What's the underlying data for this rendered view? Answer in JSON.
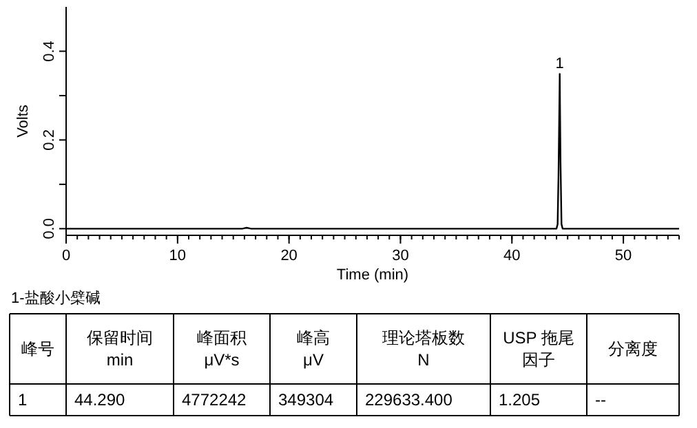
{
  "chart_data": {
    "type": "line",
    "xlabel": "Time (min)",
    "ylabel": "Volts",
    "xlim": [
      0,
      55
    ],
    "ylim": [
      -0.015,
      0.5
    ],
    "xticks": [
      0,
      10,
      20,
      30,
      40,
      50
    ],
    "yticks": [
      {
        "value": 0.0,
        "label": "0.0"
      },
      {
        "value": 0.1,
        "label": null
      },
      {
        "value": 0.2,
        "label": "0.2"
      },
      {
        "value": 0.3,
        "label": null
      },
      {
        "value": 0.4,
        "label": "0.4"
      }
    ],
    "grid": false,
    "series": [
      {
        "color": "#000000",
        "x": [
          0,
          15.8,
          16.0,
          16.2,
          16.4,
          16.6,
          44.0,
          44.1,
          44.18,
          44.29,
          44.36,
          44.45,
          44.55,
          55
        ],
        "values": [
          0,
          0,
          0.001,
          0.002,
          0.001,
          0,
          0,
          0.01,
          0.12,
          0.349,
          0.15,
          0.01,
          0,
          0
        ]
      }
    ],
    "annotations": [
      {
        "text": "1",
        "x": 44.29,
        "y": 0.349
      },
      "1-盐酸小檗碱",
      "峰号",
      "保留时间\nmin",
      "峰面积\nμV*s",
      "峰高\nμV",
      "理论塔板数\nN",
      "USP 拖尾因子",
      "分离度",
      "1",
      "44.290",
      "4772242",
      "349304",
      "229633.400",
      "1.205",
      "--"
    ]
  }
}
